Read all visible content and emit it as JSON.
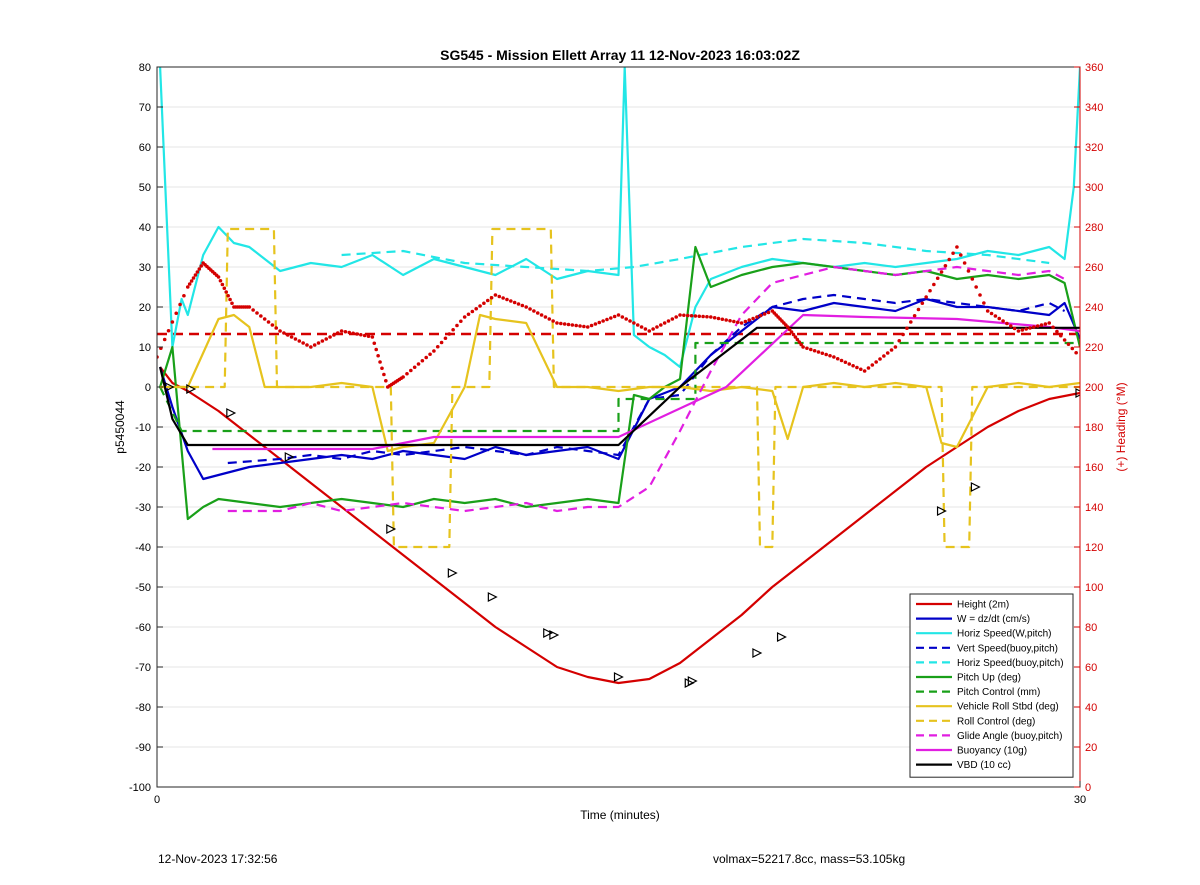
{
  "chart_data": {
    "type": "line",
    "title": "SG545 - Mission Ellett Array 11 12-Nov-2023 16:03:02Z",
    "xlabel": "Time (minutes)",
    "ylabel": "p5450044",
    "y2label": "(+) Heading (°M)",
    "xlim": [
      0,
      30
    ],
    "ylim": [
      -100,
      80
    ],
    "y2lim": [
      0,
      360
    ],
    "xticks": [
      "0",
      "30"
    ],
    "yticks": [
      "80",
      "70",
      "60",
      "50",
      "40",
      "30",
      "20",
      "10",
      "0",
      "-10",
      "-20",
      "-30",
      "-40",
      "-50",
      "-60",
      "-70",
      "-80",
      "-90",
      "-100"
    ],
    "y2ticks": [
      "360",
      "340",
      "320",
      "300",
      "280",
      "260",
      "240",
      "220",
      "200",
      "180",
      "160",
      "140",
      "120",
      "100",
      "80",
      "60",
      "40",
      "20",
      "0"
    ],
    "grid": true,
    "legend_position": "bottom-right",
    "colors": {
      "red": "#d40000",
      "blue": "#0000c8",
      "cyan": "#22e6e6",
      "green": "#19a019",
      "yellow": "#e6c31e",
      "magenta": "#e11ee1",
      "black": "#000000"
    },
    "series": [
      {
        "name": "Height (2m)",
        "color": "#d40000",
        "style": "solid",
        "x": [
          0.1,
          0.5,
          1,
          2,
          3,
          4,
          5,
          6,
          7,
          8,
          9,
          10,
          11,
          12,
          13,
          14,
          15,
          16,
          17,
          18,
          19,
          20,
          21,
          22,
          23,
          24,
          25,
          26,
          27,
          28,
          29,
          30
        ],
        "y": [
          5,
          1,
          -1,
          -6,
          -12,
          -18,
          -24,
          -30,
          -36,
          -42,
          -48,
          -54,
          -60,
          -65,
          -70,
          -72.5,
          -74,
          -73,
          -69,
          -63,
          -57,
          -50,
          -44,
          -38,
          -32,
          -26,
          -20,
          -15,
          -10,
          -6,
          -3,
          -1.5
        ]
      },
      {
        "name": "W = dz/dt (cm/s)",
        "color": "#0000c8",
        "style": "solid",
        "x": [
          0.1,
          0.5,
          1,
          1.5,
          2,
          3,
          4,
          5,
          6,
          7,
          8,
          9,
          10,
          11,
          12,
          13,
          14,
          15,
          16,
          17,
          18,
          19,
          20,
          21,
          22,
          23,
          24,
          25,
          26,
          27,
          28,
          29,
          29.5,
          30
        ],
        "y": [
          5,
          -5,
          -16,
          -23,
          -22,
          -20,
          -19,
          -18,
          -17,
          -18,
          -16,
          -17,
          -18,
          -15,
          -17,
          -16,
          -15,
          -18,
          -3,
          0,
          8,
          14,
          20,
          19,
          21,
          20,
          19,
          22,
          20,
          20,
          19,
          18,
          21,
          12
        ]
      },
      {
        "name": "Horiz Speed(W,pitch)",
        "color": "#22e6e6",
        "style": "solid",
        "x": [
          0.1,
          0.3,
          0.5,
          0.8,
          1,
          1.5,
          2,
          2.5,
          3,
          3.5,
          4,
          5,
          6,
          7,
          8,
          9,
          10,
          11,
          12,
          13,
          14,
          15,
          15.2,
          15.5,
          16,
          16.5,
          17,
          17.5,
          18,
          19,
          20,
          21,
          22,
          23,
          24,
          25,
          26,
          27,
          28,
          29,
          29.5,
          29.8,
          30
        ],
        "y": [
          80,
          45,
          10,
          22,
          18,
          33,
          40,
          36,
          35,
          32,
          29,
          31,
          30,
          33,
          28,
          32,
          30,
          28,
          32,
          27,
          29,
          28,
          80,
          13,
          10,
          8,
          5,
          20,
          27,
          30,
          32,
          31,
          30,
          31,
          30,
          31,
          32,
          34,
          33,
          35,
          32,
          50,
          80
        ]
      },
      {
        "name": "Vert Speed(buoy,pitch)",
        "color": "#0000c8",
        "style": "dashed",
        "x": [
          2.3,
          4,
          5,
          6,
          7,
          8,
          9,
          10,
          11,
          12,
          13,
          14,
          15,
          16,
          17,
          18,
          19,
          20,
          21,
          22,
          23,
          24,
          25,
          26,
          27,
          28,
          29,
          29.5
        ],
        "y": [
          -19,
          -18,
          -17,
          -18,
          -16,
          -17,
          -16,
          -15,
          -16,
          -17,
          -15,
          -16,
          -17,
          -3,
          -2,
          8,
          15,
          20,
          22,
          23,
          22,
          21,
          22,
          21,
          20,
          19,
          21,
          19
        ]
      },
      {
        "name": "Horiz Speed(buoy,pitch)",
        "color": "#22e6e6",
        "style": "dashed",
        "x": [
          6,
          8,
          10,
          12,
          14,
          15.5,
          17,
          19,
          21,
          23,
          25,
          27,
          29
        ],
        "y": [
          33,
          34,
          31,
          30,
          29,
          30,
          32,
          35,
          37,
          36,
          34,
          33,
          31
        ]
      },
      {
        "name": "Pitch Up (deg)",
        "color": "#19a019",
        "style": "solid",
        "x": [
          0.1,
          0.5,
          1,
          1.5,
          2,
          3,
          4,
          5,
          6,
          7,
          8,
          9,
          10,
          11,
          12,
          13,
          14,
          15,
          15.5,
          16,
          16.5,
          17,
          17.5,
          18,
          19,
          20,
          21,
          22,
          23,
          24,
          25,
          26,
          27,
          28,
          29,
          29.5,
          30
        ],
        "y": [
          0,
          10,
          -33,
          -30,
          -28,
          -29,
          -30,
          -29,
          -28,
          -29,
          -30,
          -28,
          -29,
          -28,
          -30,
          -29,
          -28,
          -29,
          -2,
          -3,
          0,
          2,
          35,
          25,
          28,
          30,
          31,
          30,
          29,
          28,
          29,
          27,
          28,
          27,
          28,
          26,
          10
        ]
      },
      {
        "name": "Pitch Control (mm)",
        "color": "#19a019",
        "style": "dashed",
        "x": [
          0.1,
          0.8,
          15,
          15,
          17.5,
          17.5,
          30
        ],
        "y": [
          0,
          -11,
          -11,
          -3,
          -3,
          11,
          11
        ]
      },
      {
        "name": "Vehicle Roll Stbd (deg)",
        "color": "#e6c31e",
        "style": "solid",
        "x": [
          0.1,
          1,
          2,
          2.5,
          3,
          3.5,
          4,
          5,
          6,
          7,
          7.5,
          8,
          9,
          10,
          10.5,
          11,
          12,
          13,
          14,
          15,
          16,
          17,
          18,
          19,
          20,
          20.5,
          21,
          22,
          23,
          24,
          25,
          25.5,
          26,
          27,
          28,
          29,
          30
        ],
        "y": [
          0,
          0,
          17,
          18,
          15,
          0,
          0,
          0,
          1,
          0,
          -16,
          -15,
          -14,
          0,
          18,
          17,
          16,
          0,
          0,
          -1,
          0,
          0,
          -1,
          0,
          -1,
          -13,
          0,
          1,
          0,
          1,
          0,
          -14,
          -15,
          0,
          1,
          0,
          1
        ]
      },
      {
        "name": "Roll Control (deg)",
        "color": "#e6c31e",
        "style": "dashed",
        "x": [
          0.1,
          2.2,
          2.3,
          3.8,
          3.9,
          7.6,
          7.7,
          9.5,
          9.6,
          10.8,
          10.9,
          12.8,
          12.9,
          19.5,
          19.6,
          20,
          20.1,
          25.5,
          25.6,
          26.4,
          26.5,
          30
        ],
        "y": [
          0,
          0,
          39.5,
          39.5,
          0,
          0,
          -40,
          -40,
          0,
          0,
          39.5,
          39.5,
          0,
          0,
          -40,
          -40,
          0,
          0,
          -40,
          -40,
          0,
          0
        ]
      },
      {
        "name": "Glide Angle (buoy,pitch)",
        "color": "#e11ee1",
        "style": "dashed",
        "x": [
          2.3,
          3,
          4,
          5,
          6,
          7,
          8,
          9,
          10,
          11,
          12,
          13,
          14,
          15,
          16,
          17,
          18,
          19,
          20,
          21,
          22,
          23,
          24,
          25,
          26,
          27,
          28,
          29,
          29.5
        ],
        "y": [
          -31,
          -31,
          -31,
          -29,
          -31,
          -30,
          -29,
          -30,
          -31,
          -30,
          -29,
          -31,
          -30,
          -30,
          -25,
          -11,
          4,
          18,
          26,
          28,
          30,
          29,
          28,
          29,
          30,
          29,
          28,
          29,
          27
        ]
      },
      {
        "name": "Buoyancy (10g)",
        "color": "#e11ee1",
        "style": "solid",
        "x": [
          1.8,
          7,
          9,
          15,
          18.5,
          21,
          23,
          26,
          29,
          30
        ],
        "y": [
          -15.5,
          -15.5,
          -12.5,
          -12.5,
          0,
          18,
          17.5,
          17,
          15,
          14
        ]
      },
      {
        "name": "VBD (10 cc)",
        "color": "#000000",
        "style": "solid",
        "x": [
          0.1,
          0.5,
          1,
          15,
          17,
          19.5,
          30
        ],
        "y": [
          5,
          -8,
          -14.5,
          -14.5,
          0,
          14.8,
          14.8
        ]
      }
    ],
    "heading_series": {
      "name": "Heading",
      "axis": "right",
      "color": "#d40000",
      "style": "dotted",
      "x": [
        0,
        1,
        1.5,
        2,
        2.5,
        3,
        4,
        5,
        6,
        7,
        7.5,
        8,
        9,
        10,
        11,
        12,
        13,
        14,
        15,
        16,
        17,
        18,
        19,
        20,
        20.5,
        21,
        22,
        23,
        24,
        25,
        26,
        27,
        28,
        29,
        30
      ],
      "y": [
        215,
        250,
        262,
        255,
        240,
        240,
        228,
        220,
        228,
        225,
        200,
        205,
        218,
        235,
        246,
        240,
        232,
        230,
        236,
        228,
        236,
        235,
        232,
        238,
        230,
        220,
        215,
        208,
        220,
        245,
        270,
        238,
        228,
        232,
        215
      ]
    },
    "heading_mean": {
      "axis": "right",
      "color": "#d40000",
      "style": "dashed",
      "y": 226.5
    },
    "markers": {
      "color": "#000000",
      "x": [
        0.4,
        1.1,
        2.4,
        4.3,
        7.6,
        9.6,
        10.9,
        12.7,
        12.9,
        15,
        17.3,
        17.4,
        19.5,
        20.3,
        25.5,
        26.6,
        30
      ],
      "y": [
        0,
        -0.5,
        -6.5,
        -17.5,
        -35.5,
        -46.5,
        -52.5,
        -61.5,
        -62,
        -72.5,
        -74,
        -73.5,
        -66.5,
        -62.5,
        -31,
        -25,
        -1.5
      ]
    }
  },
  "footer": {
    "timestamp": "12-Nov-2023 17:32:56",
    "info": "volmax=52217.8cc, mass=53.105kg"
  }
}
